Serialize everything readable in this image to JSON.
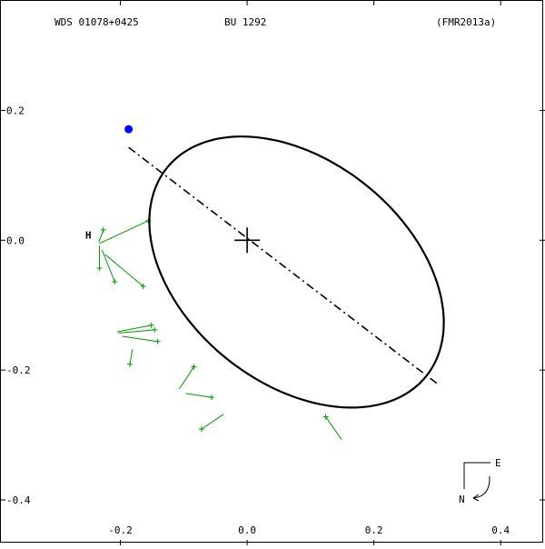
{
  "header": {
    "wds_id": "WDS 01078+0425",
    "discoverer": "BU 1292",
    "reference": "(FMR2013a)"
  },
  "axes": {
    "x_ticks": [
      -0.2,
      0.0,
      0.2,
      0.4
    ],
    "x_tick_labels": [
      "-0.2",
      "0.0",
      "0.2",
      "0.4"
    ],
    "y_ticks": [
      0.2,
      0.0,
      -0.2,
      -0.4
    ],
    "y_tick_labels": [
      "0.2",
      "0.0",
      "-0.2",
      "-0.4"
    ]
  },
  "orientation": {
    "east_label": "E",
    "north_label": "N"
  },
  "markers": {
    "history_label": "H"
  },
  "colors": {
    "orbit": "#000000",
    "residual": "#009900",
    "current_position": "#0000ff",
    "history_marker": "#ff0000"
  },
  "chart_data": {
    "type": "scatter",
    "title": "",
    "xlim": [
      -0.39,
      0.47
    ],
    "ylim": [
      -0.47,
      0.37
    ],
    "primary": [
      0.0,
      0.0
    ],
    "current_position": [
      -0.187,
      0.171
    ],
    "line_of_nodes": [
      [
        -0.187,
        0.143
      ],
      [
        0.3,
        -0.221
      ]
    ],
    "orbit_ellipse": {
      "center": [
        0.078,
        -0.049
      ],
      "semi_axes": [
        0.26,
        0.173
      ],
      "rotation_deg": -37
    },
    "observations": [
      {
        "obs": [
          -0.227,
          0.016
        ],
        "fit": [
          -0.234,
          -0.003
        ]
      },
      {
        "obs": [
          -0.156,
          0.03
        ],
        "fit": [
          -0.233,
          -0.005
        ]
      },
      {
        "obs": [
          -0.233,
          -0.043
        ],
        "fit": [
          -0.233,
          -0.008
        ]
      },
      {
        "obs": [
          -0.209,
          -0.064
        ],
        "fit": [
          -0.229,
          -0.015
        ]
      },
      {
        "obs": [
          -0.164,
          -0.071
        ],
        "fit": [
          -0.224,
          -0.022
        ]
      },
      {
        "obs": [
          -0.151,
          -0.131
        ],
        "fit": [
          -0.205,
          -0.141
        ]
      },
      {
        "obs": [
          -0.146,
          -0.138
        ],
        "fit": [
          -0.203,
          -0.143
        ]
      },
      {
        "obs": [
          -0.141,
          -0.156
        ],
        "fit": [
          -0.197,
          -0.148
        ]
      },
      {
        "obs": [
          -0.185,
          -0.191
        ],
        "fit": [
          -0.181,
          -0.168
        ]
      },
      {
        "obs": [
          -0.084,
          -0.195
        ],
        "fit": [
          -0.107,
          -0.229
        ]
      },
      {
        "obs": [
          -0.056,
          -0.242
        ],
        "fit": [
          -0.097,
          -0.236
        ]
      },
      {
        "obs": [
          -0.072,
          -0.291
        ],
        "fit": [
          -0.037,
          -0.268
        ]
      },
      {
        "obs": [
          0.124,
          -0.272
        ],
        "fit": [
          0.149,
          -0.307
        ]
      }
    ]
  }
}
